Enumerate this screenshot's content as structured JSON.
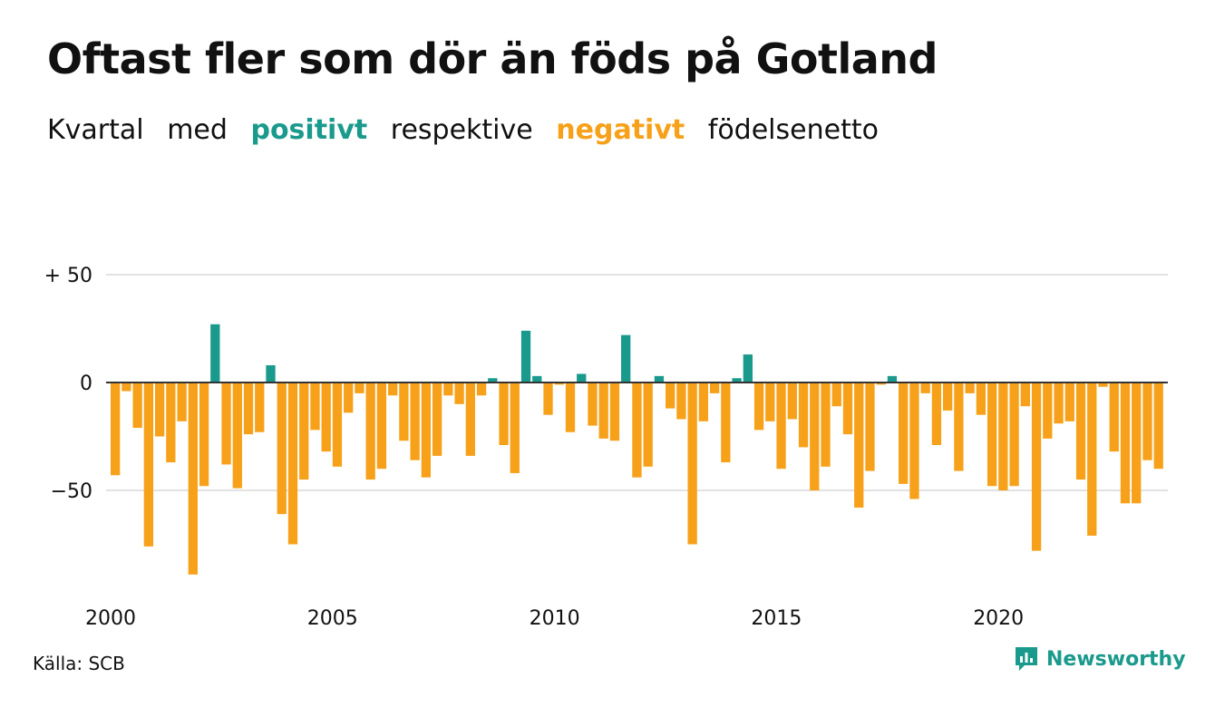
{
  "title": "Oftast fler som dör än föds på Gotland",
  "subtitle": {
    "prefix": "Kvartal",
    "word_med": "med",
    "positive_word": "positivt",
    "middle": "respektive",
    "negative_word": "negativt",
    "suffix": "födelsenetto"
  },
  "colors": {
    "positive": "#1a9a8c",
    "negative": "#f7a11a",
    "grid": "#e2e2e2",
    "zero_line": "#333333",
    "text": "#111111"
  },
  "source": "Källa: SCB",
  "brand": {
    "name": "Newsworthy",
    "icon": "newsworthy-logo-icon"
  },
  "chart_data": {
    "type": "bar",
    "title": "Oftast fler som dör än föds på Gotland",
    "xlabel": "",
    "ylabel": "",
    "grid": true,
    "ylim": [
      -90,
      50
    ],
    "y_ticks": [
      {
        "value": 50,
        "label": "+ 50"
      },
      {
        "value": 0,
        "label": "0"
      },
      {
        "value": -50,
        "label": "−50"
      }
    ],
    "x_ticks": [
      {
        "year": 2000,
        "label": "2000"
      },
      {
        "year": 2005,
        "label": "2005"
      },
      {
        "year": 2010,
        "label": "2010"
      },
      {
        "year": 2015,
        "label": "2015"
      },
      {
        "year": 2020,
        "label": "2020"
      }
    ],
    "first_quarter": "2000 Q1",
    "frequency": "quarterly",
    "values": [
      -43,
      -4,
      -21,
      -76,
      -25,
      -37,
      -18,
      -89,
      -48,
      27,
      -38,
      -49,
      -24,
      -23,
      8,
      -61,
      -75,
      -45,
      -22,
      -32,
      -39,
      -14,
      -5,
      -45,
      -40,
      -6,
      -27,
      -36,
      -44,
      -34,
      -6,
      -10,
      -34,
      -6,
      2,
      -29,
      -42,
      24,
      3,
      -15,
      -1,
      -23,
      4,
      -20,
      -26,
      -27,
      22,
      -44,
      -39,
      3,
      -12,
      -17,
      -75,
      -18,
      -5,
      -37,
      2,
      13,
      -22,
      -18,
      -40,
      -17,
      -30,
      -50,
      -39,
      -11,
      -24,
      -58,
      -41,
      -1,
      3,
      -47,
      -54,
      -5,
      -29,
      -13,
      -41,
      -5,
      -15,
      -48,
      -50,
      -48,
      -11,
      -78,
      -26,
      -19,
      -18,
      -45,
      -71,
      -2,
      -32,
      -56,
      -56,
      -36,
      -40
    ]
  }
}
